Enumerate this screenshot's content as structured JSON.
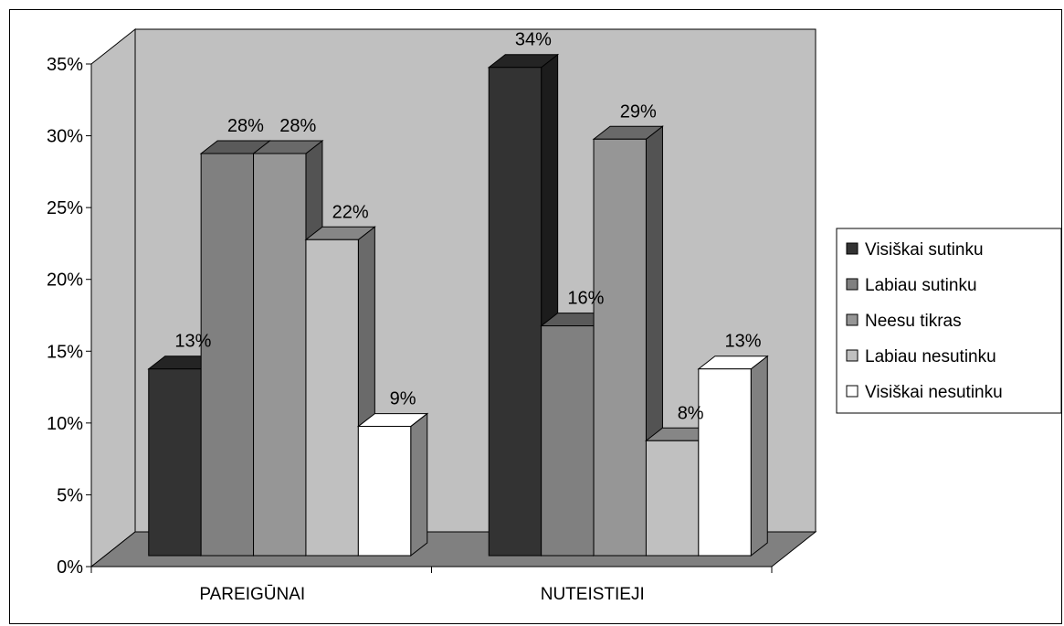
{
  "chart_data": {
    "type": "bar",
    "title": "",
    "xlabel": "",
    "ylabel": "",
    "ylim": [
      0,
      35
    ],
    "y_ticks": [
      "0%",
      "5%",
      "10%",
      "15%",
      "20%",
      "25%",
      "30%",
      "35%"
    ],
    "categories": [
      "PAREIGŪNAI",
      "NUTEISTIEJI"
    ],
    "series": [
      {
        "name": "Visiškai sutinku",
        "values": [
          13,
          34
        ],
        "labels": [
          "13%",
          "34%"
        ],
        "color": "#333333"
      },
      {
        "name": "Labiau sutinku",
        "values": [
          28,
          16
        ],
        "labels": [
          "28%",
          "16%"
        ],
        "color": "#808080"
      },
      {
        "name": "Neesu tikras",
        "values": [
          28,
          29
        ],
        "labels": [
          "28%",
          "29%"
        ],
        "color": "#969696"
      },
      {
        "name": "Labiau nesutinku",
        "values": [
          22,
          8
        ],
        "labels": [
          "22%",
          "8%"
        ],
        "color": "#c0c0c0"
      },
      {
        "name": "Visiškai nesutinku",
        "values": [
          9,
          13
        ],
        "labels": [
          "9%",
          "13%"
        ],
        "color": "#ffffff"
      }
    ],
    "grid": false,
    "legend_position": "right",
    "style": "3d-column",
    "wall_color": "#c0c0c0",
    "floor_color": "#808080"
  }
}
